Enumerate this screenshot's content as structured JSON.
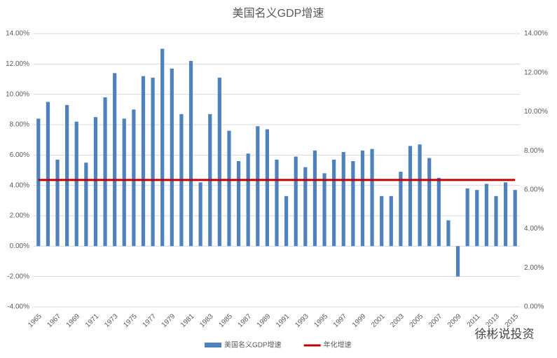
{
  "chart_data": {
    "type": "bar",
    "title": "美国名义GDP增速",
    "watermark": "徐彬说投资",
    "categories": [
      "1965",
      null,
      "1967",
      null,
      "1969",
      null,
      "1971",
      null,
      "1973",
      null,
      "1975",
      null,
      "1977",
      null,
      "1979",
      null,
      "1981",
      null,
      "1983",
      null,
      "1985",
      null,
      "1987",
      null,
      "1989",
      null,
      "1991",
      null,
      "1993",
      null,
      "1995",
      null,
      "1997",
      null,
      "1999",
      null,
      "2001",
      null,
      "2003",
      null,
      "2005",
      null,
      "2007",
      null,
      "2009",
      null,
      "2011",
      null,
      "2013",
      null,
      "2015"
    ],
    "series": [
      {
        "name": "美国名义GDP增速",
        "color": "#4f81bd",
        "type": "bar",
        "values": [
          8.4,
          9.5,
          5.7,
          9.3,
          8.2,
          5.5,
          8.5,
          9.8,
          11.4,
          8.4,
          9.0,
          11.2,
          11.1,
          13.0,
          11.7,
          8.7,
          12.2,
          4.2,
          8.7,
          11.1,
          7.6,
          5.6,
          6.1,
          7.9,
          7.7,
          5.7,
          3.3,
          5.9,
          5.2,
          6.3,
          4.8,
          5.7,
          6.2,
          5.6,
          6.3,
          6.4,
          3.3,
          3.3,
          4.9,
          6.6,
          6.7,
          5.8,
          4.5,
          1.7,
          -2.0,
          3.8,
          3.7,
          4.1,
          3.3,
          4.2,
          3.7
        ]
      },
      {
        "name": "年化增速",
        "color": "#c00000",
        "type": "line",
        "axis": "y2",
        "values": [
          6.5,
          6.5,
          6.5,
          6.5,
          6.5,
          6.5,
          6.5,
          6.5,
          6.5,
          6.5,
          6.5,
          6.5,
          6.5,
          6.5,
          6.5,
          6.5,
          6.5,
          6.5,
          6.5,
          6.5,
          6.5,
          6.5,
          6.5,
          6.5,
          6.5,
          6.5,
          6.5,
          6.5,
          6.5,
          6.5,
          6.5,
          6.5,
          6.5,
          6.5,
          6.5,
          6.5,
          6.5,
          6.5,
          6.5,
          6.5,
          6.5,
          6.5,
          6.5,
          6.5,
          6.5,
          6.5,
          6.5,
          6.5,
          6.5,
          6.5,
          6.5
        ]
      }
    ],
    "ylim": [
      -4,
      14
    ],
    "yticks": [
      {
        "value": -4,
        "label": "-4.00%"
      },
      {
        "value": -2,
        "label": "-2.00%"
      },
      {
        "value": 0,
        "label": "0.00%"
      },
      {
        "value": 2,
        "label": "2.00%"
      },
      {
        "value": 4,
        "label": "4.00%"
      },
      {
        "value": 6,
        "label": "6.00%"
      },
      {
        "value": 8,
        "label": "8.00%"
      },
      {
        "value": 10,
        "label": "10.00%"
      },
      {
        "value": 12,
        "label": "12.00%"
      },
      {
        "value": 14,
        "label": "14.00%"
      }
    ],
    "y2lim": [
      0,
      14
    ],
    "y2ticks": [
      {
        "value": 0,
        "label": "0.00%"
      },
      {
        "value": 2,
        "label": "2.00%"
      },
      {
        "value": 4,
        "label": "4.00%"
      },
      {
        "value": 6,
        "label": "6.00%"
      },
      {
        "value": 8,
        "label": "8.00%"
      },
      {
        "value": 10,
        "label": "10.00%"
      },
      {
        "value": 12,
        "label": "12.00%"
      },
      {
        "value": 14,
        "label": "14.00%"
      }
    ],
    "grid": true,
    "legend": "bottom"
  }
}
